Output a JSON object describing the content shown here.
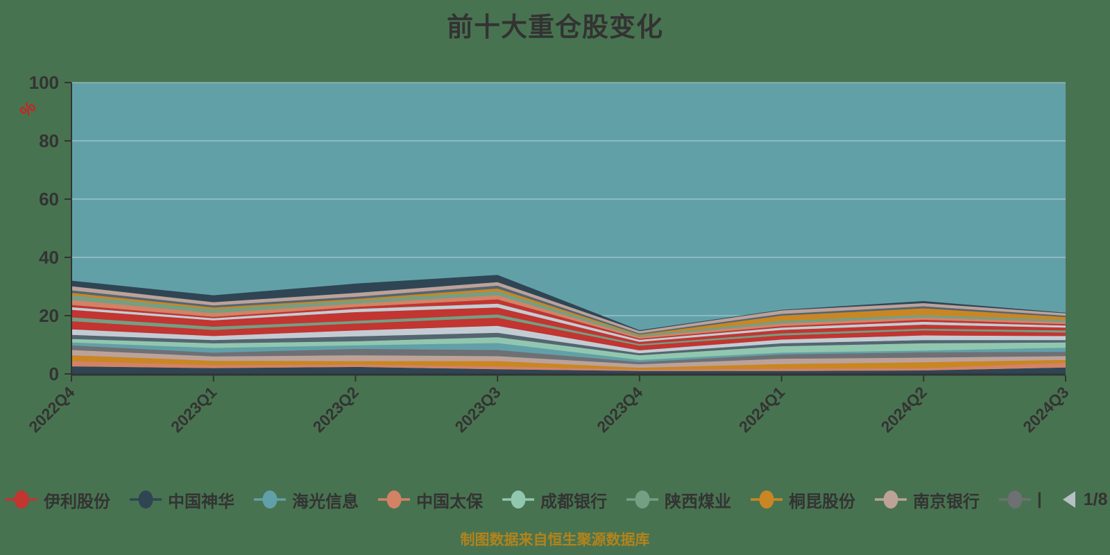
{
  "title": "前十大重仓股变化",
  "y_axis_unit": "%",
  "footer": "制图数据来自恒生聚源数据库",
  "colors": {
    "background": "#487350",
    "plot_bg": "#62a0a8",
    "grid": "rgba(255,255,255,0.28)",
    "axis": "#333333",
    "text": "#333333",
    "title": "#333333",
    "footer": "#b2831c",
    "unit_label": "#cc2222",
    "pager_prev": "#b7c0c4",
    "pager_next": "#36505c"
  },
  "legend": {
    "items": [
      {
        "label": "伊利股份",
        "color": "#c23531"
      },
      {
        "label": "中国神华",
        "color": "#2f4554"
      },
      {
        "label": "海光信息",
        "color": "#61a0a8"
      },
      {
        "label": "中国太保",
        "color": "#d48265"
      },
      {
        "label": "成都银行",
        "color": "#91c7ae"
      },
      {
        "label": "陕西煤业",
        "color": "#749f83"
      },
      {
        "label": "桐昆股份",
        "color": "#ca8622"
      },
      {
        "label": "南京银行",
        "color": "#bda29a"
      },
      {
        "label": "|",
        "color": "#6e7074"
      }
    ],
    "pager": {
      "current": "1/8"
    }
  },
  "chart_data": {
    "type": "area",
    "stacked": true,
    "title": "前十大重仓股变化",
    "xlabel": "",
    "ylabel": "%",
    "ylim": [
      0,
      100
    ],
    "y_ticks": [
      0,
      20,
      40,
      60,
      80,
      100
    ],
    "grid": true,
    "legend_position": "bottom",
    "x_categories": [
      "2022Q4",
      "2023Q1",
      "2023Q2",
      "2023Q3",
      "2023Q4",
      "2024Q1",
      "2024Q2",
      "2024Q3"
    ],
    "stack_totals": [
      32,
      27,
      31,
      34,
      15,
      22,
      25,
      21
    ],
    "series": [
      {
        "name": "",
        "color": "#2f4554",
        "values": [
          2.6,
          2.0,
          2.4,
          1.6,
          1.0,
          1.0,
          1.2,
          2.2
        ]
      },
      {
        "name": "",
        "color": "#d48265",
        "values": [
          1.8,
          1.0,
          0.8,
          1.0,
          0.5,
          0.8,
          0.8,
          1.6
        ]
      },
      {
        "name": "桐昆股份",
        "color": "#ca8622",
        "values": [
          2.0,
          1.5,
          1.2,
          1.8,
          0.6,
          1.6,
          2.0,
          1.0
        ]
      },
      {
        "name": "南京银行",
        "color": "#bda29a",
        "values": [
          1.8,
          1.5,
          2.0,
          1.7,
          1.2,
          1.8,
          1.6,
          1.3
        ]
      },
      {
        "name": "",
        "color": "#6e7074",
        "values": [
          1.6,
          1.3,
          2.2,
          2.1,
          0.8,
          1.5,
          1.8,
          1.5
        ]
      },
      {
        "name": "海光信息",
        "color": "#61a0a8",
        "values": [
          1.0,
          1.6,
          1.2,
          2.4,
          0.7,
          0.6,
          0.6,
          1.4
        ]
      },
      {
        "name": "成都银行",
        "color": "#91c7ae",
        "values": [
          1.2,
          1.6,
          1.4,
          2.0,
          1.6,
          2.2,
          2.5,
          1.8
        ]
      },
      {
        "name": "",
        "color": "#546570",
        "values": [
          1.4,
          1.1,
          1.7,
          1.5,
          0.7,
          1.0,
          1.1,
          0.8
        ]
      },
      {
        "name": "",
        "color": "#c4ccd3",
        "values": [
          1.9,
          1.4,
          2.0,
          2.4,
          1.0,
          1.3,
          1.6,
          1.4
        ]
      },
      {
        "name": "伊利股份",
        "color": "#c23531",
        "values": [
          2.8,
          2.1,
          2.4,
          2.8,
          1.6,
          1.4,
          1.7,
          1.2
        ]
      },
      {
        "name": "",
        "color": "#749f83",
        "values": [
          1.3,
          1.1,
          0.9,
          1.1,
          0.5,
          0.7,
          0.6,
          0.7
        ]
      },
      {
        "name": "",
        "color": "#c23531",
        "values": [
          2.6,
          2.2,
          3.0,
          2.4,
          0.8,
          1.2,
          1.4,
          1.0
        ]
      },
      {
        "name": "",
        "color": "#c4ccd3",
        "values": [
          0.9,
          0.7,
          1.1,
          1.3,
          0.7,
          0.8,
          1.0,
          0.7
        ]
      },
      {
        "name": "",
        "color": "#c23531",
        "values": [
          0.8,
          0.5,
          0.7,
          1.5,
          0.4,
          0.5,
          0.7,
          0.5
        ]
      },
      {
        "name": "中国太保",
        "color": "#d48265",
        "values": [
          1.7,
          1.3,
          1.1,
          1.4,
          0.6,
          0.9,
          0.8,
          0.7
        ]
      },
      {
        "name": "陕西煤业",
        "color": "#749f83",
        "values": [
          1.6,
          1.3,
          1.1,
          1.4,
          0.5,
          0.9,
          0.8,
          0.7
        ]
      },
      {
        "name": "",
        "color": "#ca8622",
        "values": [
          0.8,
          0.6,
          0.5,
          0.9,
          0.3,
          1.8,
          2.3,
          1.0
        ]
      },
      {
        "name": "",
        "color": "#546570",
        "values": [
          0.9,
          0.7,
          0.8,
          1.0,
          0.4,
          0.6,
          0.7,
          0.5
        ]
      },
      {
        "name": "",
        "color": "#bda29a",
        "values": [
          1.4,
          1.1,
          1.3,
          1.2,
          0.8,
          1.2,
          1.1,
          0.8
        ]
      },
      {
        "name": "中国神华",
        "color": "#2f4554",
        "values": [
          1.9,
          2.4,
          3.2,
          2.5,
          0.3,
          0.2,
          0.7,
          0.2
        ]
      }
    ]
  }
}
